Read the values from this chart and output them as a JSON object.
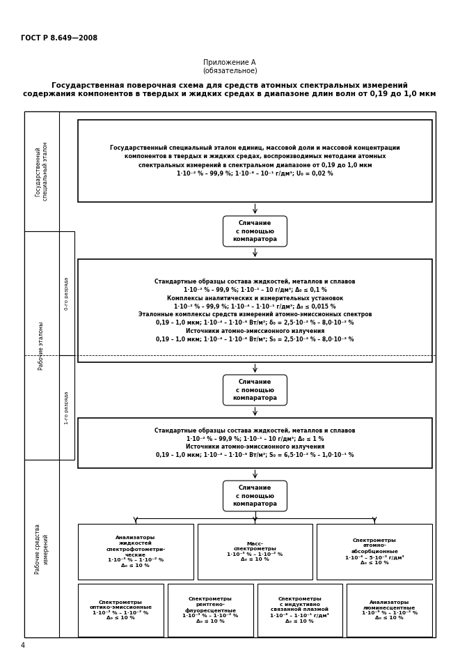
{
  "title_gost": "ГОСТ Р 8.649—2008",
  "appendix_line1": "Приложение А",
  "appendix_line2": "(обязательное)",
  "main_title_line1": "Государственная поверочная схема для средств атомных спектральных измерений",
  "main_title_line2": "содержания компонентов в твердых и жидких средах в диапазоне длин волн от 0,19 до 1,0 мкм",
  "comparator1_text": "Сличание\nс помощью\nкомпаратора",
  "comparator2_text": "Сличание\nс помощью\nкомпаратора",
  "comparator3_text": "Сличание\nс помощью\nкомпаратора",
  "page_num": "4",
  "bg_color": "#ffffff"
}
